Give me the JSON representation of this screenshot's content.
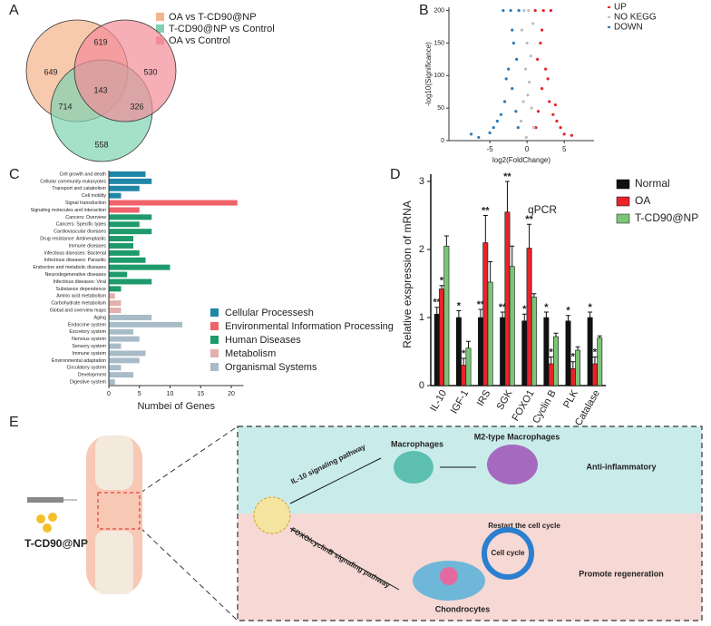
{
  "panel_labels": [
    "A",
    "B",
    "C",
    "D",
    "E"
  ],
  "chart_data": [
    {
      "type": "venn",
      "sets": [
        {
          "name": "OA vs T-CD90@NP",
          "color": "#f4b48c"
        },
        {
          "name": "T-CD90@NP vs Control",
          "color": "#7fd3b2"
        },
        {
          "name": "OA vs Control",
          "color": "#f28c98"
        }
      ],
      "values": [
        649,
        530,
        558,
        619,
        714,
        326,
        143
      ]
    },
    {
      "type": "scatter",
      "xlabel": "log2(FoldChange)",
      "ylabel": "-log10(Significance)",
      "xlim": [
        -10.5,
        9
      ],
      "ylim": [
        0,
        205
      ],
      "xticks": [
        -5,
        0,
        5
      ],
      "yticks": [
        0,
        50,
        100,
        150,
        200
      ],
      "series": [
        {
          "name": "UP",
          "color": "#e8232a",
          "x": [
            1.2,
            1.5,
            2.0,
            2.5,
            3.0,
            3.5,
            4.0,
            4.5,
            5.0,
            1.8,
            2.2,
            3.2,
            1.1,
            2.8,
            6.0,
            1.4,
            2.0,
            3.8
          ],
          "values": [
            20,
            45,
            80,
            110,
            60,
            40,
            30,
            20,
            10,
            150,
            200,
            200,
            200,
            95,
            8,
            125,
            170,
            55
          ]
        },
        {
          "name": "NO KEGG",
          "color": "#bdbdbd",
          "x": [
            -0.8,
            -0.5,
            -0.2,
            0,
            0.3,
            0.6,
            0.9,
            -0.4,
            0.2,
            0.5,
            -0.7,
            0.8,
            -0.1,
            0.1
          ],
          "values": [
            30,
            60,
            110,
            150,
            90,
            50,
            20,
            200,
            200,
            130,
            170,
            180,
            5,
            70
          ]
        },
        {
          "name": "DOWN",
          "color": "#2b7bba",
          "x": [
            -1.2,
            -1.5,
            -2.0,
            -2.5,
            -3.0,
            -3.5,
            -4.0,
            -4.5,
            -5.0,
            -1.8,
            -2.2,
            -3.2,
            -1.1,
            -2.8,
            -6.5,
            -1.4,
            -7.5,
            -2.0
          ],
          "values": [
            20,
            45,
            80,
            110,
            60,
            40,
            30,
            20,
            12,
            150,
            200,
            200,
            200,
            95,
            5,
            125,
            10,
            170
          ]
        }
      ]
    },
    {
      "type": "barh",
      "xlabel": "Numbei of Genes",
      "xlim": [
        0,
        22
      ],
      "xticks": [
        0,
        5,
        10,
        15,
        20
      ],
      "series": [
        {
          "name": "Cellular Processesh",
          "color": "#1f86a8",
          "categories": [
            "Cell growth and death",
            "Cellular community-eukaryotes",
            "Transport and catabolism",
            "Cell motility"
          ],
          "values": [
            6,
            7,
            5,
            2
          ]
        },
        {
          "name": "Environmental Information Processing",
          "color": "#f0626a",
          "categories": [
            "Signal transduction",
            "Signaling molecules and interaction"
          ],
          "values": [
            21,
            5
          ]
        },
        {
          "name": "Human Diseases",
          "color": "#1e9a6c",
          "categories": [
            "Cancers: Overview",
            "Cancers: Specific types",
            "Cardiovascular diseases",
            "Drug resistance: Antineoplastic",
            "Immune diseases",
            "Infectious diseases: Bacterial",
            "Infectious diseases: Parasitic",
            "Endocrine and metabolic diseases",
            "Neurodegenerative diseases",
            "Infectious diseases: Viral",
            "Substance dependence"
          ],
          "values": [
            7,
            5,
            7,
            4,
            4,
            5,
            6,
            10,
            3,
            7,
            2
          ]
        },
        {
          "name": "Metabolism",
          "color": "#e3b0ae",
          "categories": [
            "Amino acid metabolism",
            "Carbohydrate metabolism",
            "Global and overview maps"
          ],
          "values": [
            1,
            2,
            2
          ]
        },
        {
          "name": "Organismal Systems",
          "color": "#a8bcc8",
          "categories": [
            "Aging",
            "Endocrine system",
            "Excretory system",
            "Nervous system",
            "Sensory system",
            "Immune system",
            "Environmental adaptation",
            "Circulatory system",
            "Development",
            "Digestive system"
          ],
          "values": [
            7,
            12,
            4,
            5,
            2,
            6,
            5,
            2,
            4,
            1
          ]
        }
      ]
    },
    {
      "type": "bar",
      "title": "qPCR",
      "ylabel": "Relative exspression of mRNA",
      "ylim": [
        0,
        3
      ],
      "yticks": [
        0,
        1,
        2,
        3
      ],
      "categories": [
        "IL-10",
        "IGF-1",
        "IRS",
        "SGK",
        "FOXO1",
        "Cyclin B",
        "PLK",
        "Catalase"
      ],
      "series": [
        {
          "name": "Normal",
          "color": "#111111",
          "values": [
            1.05,
            1.0,
            1.0,
            1.0,
            0.95,
            1.0,
            0.95,
            1.0
          ],
          "errors": [
            0.1,
            0.1,
            0.12,
            0.08,
            0.1,
            0.08,
            0.08,
            0.08
          ],
          "significance": [
            "**",
            "*",
            "**",
            "**",
            "*",
            "*",
            "*",
            "*"
          ]
        },
        {
          "name": "OA",
          "color": "#e8232a",
          "values": [
            1.42,
            0.3,
            2.1,
            2.55,
            2.02,
            0.32,
            0.25,
            0.32
          ],
          "errors": [
            0.05,
            0.1,
            0.4,
            0.45,
            0.35,
            0.1,
            0.1,
            0.1
          ],
          "significance": [
            "*",
            "*",
            "**",
            "**",
            "**",
            "*",
            "*",
            "*"
          ]
        },
        {
          "name": "T-CD90@NP",
          "color": "#7cc576",
          "values": [
            2.05,
            0.55,
            1.52,
            1.75,
            1.3,
            0.72,
            0.52,
            0.7
          ],
          "errors": [
            0.15,
            0.1,
            0.3,
            0.3,
            0.05,
            0.05,
            0.05,
            0.03
          ]
        }
      ]
    }
  ],
  "diagram": {
    "nanoparticle": "T-CD90@NP",
    "macrophages": "Macrophages",
    "m2": "M2-type Macrophages",
    "il10_pathway": "IL-10 signaling pathway",
    "anti": "Anti-inflammatory",
    "restart": "Restart the cell cycle",
    "cycle": "Cell cycle",
    "foxo_pathway": "FOXO/cyclinB signaling pathway",
    "regen": "Promote regeneration",
    "chondro": "Chondrocytes"
  }
}
